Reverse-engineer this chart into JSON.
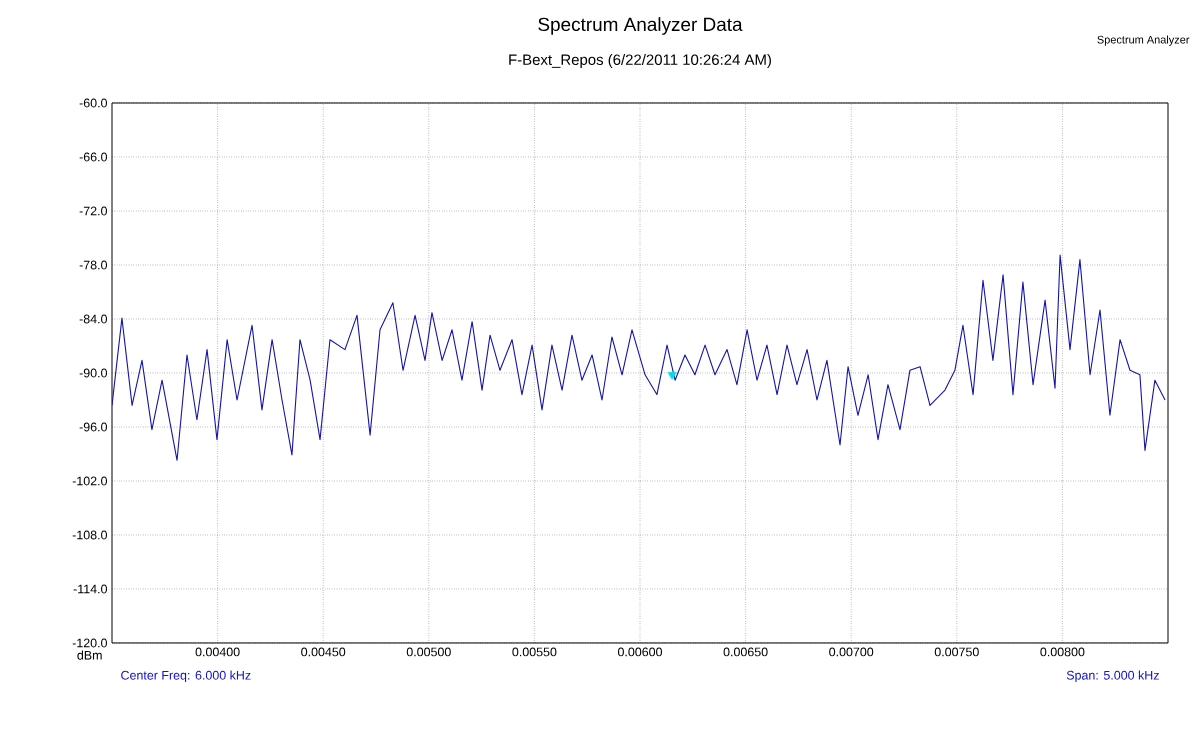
{
  "chart_data": {
    "type": "line",
    "title": "Spectrum Analyzer Data",
    "subtitle": "F-Bext_Repos (6/22/2011 10:26:24 AM)",
    "ylabel": "dBm",
    "annotations": [
      "Spectrum Analyzer",
      "Center Freq: 6.000 kHz",
      "Span: 5.000 kHz"
    ],
    "series": [
      {
        "color": "#1414a8",
        "x": [
          0.0035,
          0.003547,
          0.003595,
          0.003642,
          0.003689,
          0.003737,
          0.003808,
          0.003855,
          0.003902,
          0.00395,
          0.003997,
          0.004045,
          0.004092,
          0.004163,
          0.00421,
          0.004258,
          0.004305,
          0.004352,
          0.00439,
          0.004438,
          0.004485,
          0.004532,
          0.004603,
          0.00466,
          0.004722,
          0.004769,
          0.00483,
          0.004878,
          0.004935,
          0.004982,
          0.005015,
          0.005063,
          0.00511,
          0.005157,
          0.005205,
          0.005252,
          0.00529,
          0.005337,
          0.005394,
          0.005441,
          0.005489,
          0.005536,
          0.005583,
          0.005631,
          0.005678,
          0.005725,
          0.005773,
          0.00582,
          0.005867,
          0.005915,
          0.005962,
          0.006024,
          0.00608,
          0.006128,
          0.006166,
          0.006213,
          0.00626,
          0.006308,
          0.006355,
          0.006412,
          0.006459,
          0.006507,
          0.006554,
          0.006601,
          0.006649,
          0.006696,
          0.006743,
          0.006791,
          0.006838,
          0.006885,
          0.006947,
          0.006985,
          0.007032,
          0.00708,
          0.007127,
          0.007174,
          0.007231,
          0.007278,
          0.007326,
          0.007373,
          0.007444,
          0.007491,
          0.007529,
          0.007577,
          0.007624,
          0.007671,
          0.007719,
          0.007766,
          0.007813,
          0.007861,
          0.007918,
          0.007965,
          0.007989,
          0.008036,
          0.008083,
          0.008131,
          0.008178,
          0.008225,
          0.008273,
          0.00832,
          0.008367,
          0.008391,
          0.008438,
          0.008486
        ],
        "values": [
          -93.6,
          -83.9,
          -93.6,
          -88.6,
          -96.3,
          -90.8,
          -99.7,
          -88,
          -95.2,
          -87.4,
          -97.4,
          -86.3,
          -93,
          -84.7,
          -94.1,
          -86.3,
          -93,
          -99.1,
          -86.3,
          -90.8,
          -97.4,
          -86.3,
          -87.4,
          -83.6,
          -96.9,
          -85.2,
          -82.2,
          -89.7,
          -83.6,
          -88.6,
          -83.3,
          -88.6,
          -85.2,
          -90.8,
          -84.3,
          -91.9,
          -85.8,
          -89.7,
          -86.3,
          -92.4,
          -86.9,
          -94.1,
          -86.9,
          -91.9,
          -85.8,
          -90.8,
          -88,
          -93,
          -86,
          -90.2,
          -85.2,
          -90.2,
          -92.4,
          -86.9,
          -90.8,
          -88,
          -90.2,
          -86.9,
          -90.2,
          -87.4,
          -91.3,
          -85.2,
          -90.8,
          -86.9,
          -92.4,
          -86.9,
          -91.3,
          -87.4,
          -93,
          -88.6,
          -98,
          -89.3,
          -94.7,
          -90.2,
          -97.4,
          -91.3,
          -96.3,
          -89.7,
          -89.3,
          -93.6,
          -91.9,
          -89.7,
          -84.7,
          -92.4,
          -79.7,
          -88.6,
          -79.1,
          -92.4,
          -79.9,
          -91.3,
          -81.9,
          -91.7,
          -76.9,
          -87.4,
          -77.4,
          -90.2,
          -83,
          -94.7,
          -86.3,
          -89.7,
          -90.2,
          -98.6,
          -90.8,
          -93
        ]
      },
      {
        "type": "scatter",
        "marker": "triangle",
        "color": "#00e0e0",
        "x": [
          0.006152
        ],
        "values": [
          -90.2
        ]
      }
    ],
    "xlim": [
      0.0035,
      0.0085
    ],
    "ylim": [
      -120,
      -60
    ],
    "xticks": [
      {
        "value": 0.004,
        "label": "0.00400"
      },
      {
        "value": 0.0045,
        "label": "0.00450"
      },
      {
        "value": 0.005,
        "label": "0.00500"
      },
      {
        "value": 0.0055,
        "label": "0.00550"
      },
      {
        "value": 0.006,
        "label": "0.00600"
      },
      {
        "value": 0.0065,
        "label": "0.00650"
      },
      {
        "value": 0.007,
        "label": "0.00700"
      },
      {
        "value": 0.0075,
        "label": "0.00750"
      },
      {
        "value": 0.008,
        "label": "0.00800"
      }
    ],
    "yticks": [
      {
        "value": -120,
        "label": "-120.0"
      },
      {
        "value": -114,
        "label": "-114.0"
      },
      {
        "value": -108,
        "label": "-108.0"
      },
      {
        "value": -102,
        "label": "-102.0"
      },
      {
        "value": -96,
        "label": "-96.0"
      },
      {
        "value": -90,
        "label": "-90.0"
      },
      {
        "value": -84,
        "label": "-84.0"
      },
      {
        "value": -78,
        "label": "-78.0"
      },
      {
        "value": -72,
        "label": "-72.0"
      },
      {
        "value": -66,
        "label": "-66.0"
      },
      {
        "value": -60,
        "label": "-60.0"
      }
    ],
    "grid": true,
    "line_style": "solid"
  }
}
